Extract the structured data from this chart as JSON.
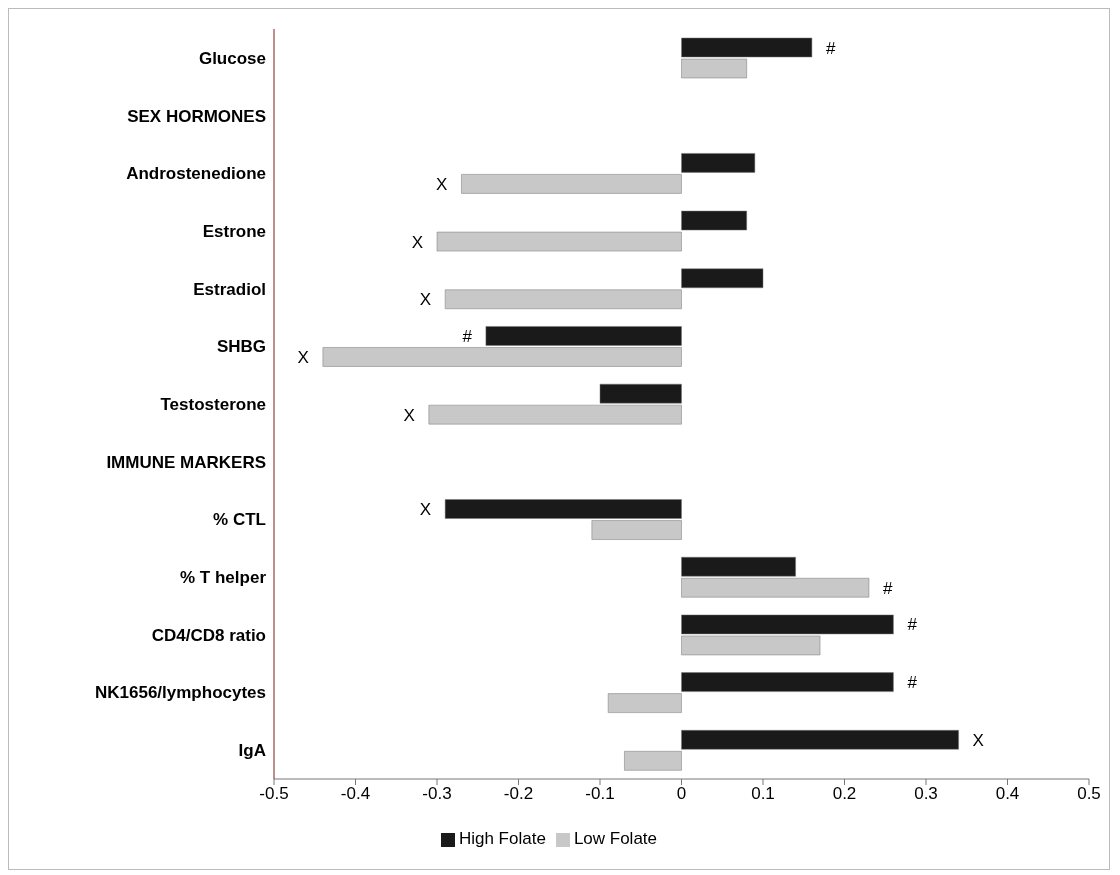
{
  "chart_data": {
    "type": "bar",
    "orientation": "horizontal",
    "categories": [
      "Glucose",
      "SEX HORMONES",
      "Androstenedione",
      "Estrone",
      "Estradiol",
      "SHBG",
      "Testosterone",
      "IMMUNE MARKERS",
      "% CTL",
      "% T helper",
      "CD4/CD8 ratio",
      "NK1656/lymphocytes",
      "IgA"
    ],
    "series": [
      {
        "name": "High Folate",
        "color": "#1a1a1a",
        "values": [
          0.16,
          null,
          0.09,
          0.08,
          0.1,
          -0.24,
          -0.1,
          null,
          -0.29,
          0.14,
          0.26,
          0.26,
          0.34
        ],
        "value_labels": [
          "#",
          null,
          null,
          null,
          null,
          "#",
          null,
          null,
          "X",
          null,
          "#",
          "#",
          "X"
        ]
      },
      {
        "name": "Low Folate",
        "color": "#c8c8c8",
        "values": [
          0.08,
          null,
          -0.27,
          -0.3,
          -0.29,
          -0.44,
          -0.31,
          null,
          -0.11,
          0.23,
          0.17,
          -0.09,
          -0.07
        ],
        "value_labels": [
          null,
          null,
          "X",
          "X",
          "X",
          "X",
          "X",
          null,
          null,
          "#",
          null,
          null,
          null
        ]
      }
    ],
    "xlim": [
      -0.5,
      0.5
    ],
    "xticks": [
      -0.5,
      -0.4,
      -0.3,
      -0.2,
      -0.1,
      0,
      0.1,
      0.2,
      0.3,
      0.4,
      0.5
    ],
    "grid": false,
    "legend": "bottom"
  }
}
